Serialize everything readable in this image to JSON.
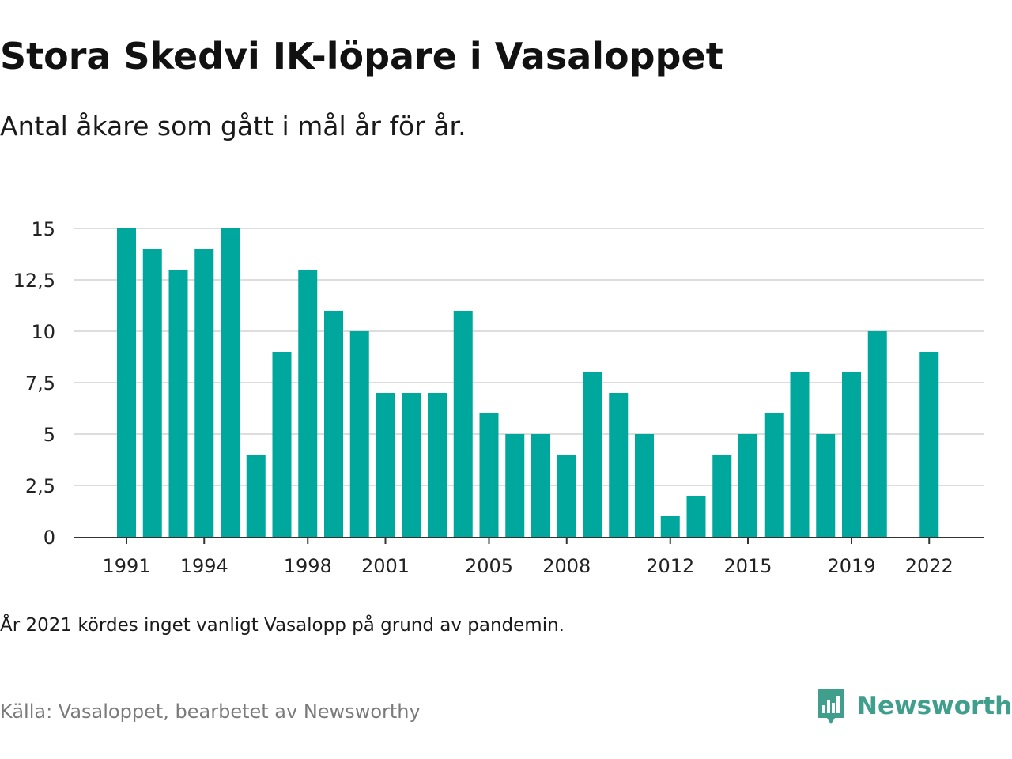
{
  "header": {
    "title": "Stora Skedvi IK-löpare i Vasaloppet",
    "subtitle": "Antal åkare som gått i mål år för år."
  },
  "footer": {
    "note": "År 2021 kördes inget vanligt Vasalopp på grund av pandemin.",
    "source": "Källa: Vasaloppet, bearbetet av Newsworthy",
    "brand_name": "Newsworthy",
    "brand_icon": "newsworthy-logo-icon"
  },
  "colors": {
    "bar": "#00a79d",
    "grid": "#dddddd",
    "axis": "#333333",
    "brand": "#3f9e8c"
  },
  "chart_data": {
    "type": "bar",
    "title": "Stora Skedvi IK-löpare i Vasaloppet",
    "subtitle": "Antal åkare som gått i mål år för år.",
    "xlabel": "",
    "ylabel": "",
    "ylim": [
      0,
      15
    ],
    "grid": true,
    "legend": "none",
    "yticks": [
      0,
      2.5,
      5,
      7.5,
      10,
      12.5,
      15
    ],
    "ytick_labels": [
      "0",
      "2,5",
      "5",
      "7,5",
      "10",
      "12,5",
      "15"
    ],
    "xtick_labels": [
      "1991",
      "1994",
      "1998",
      "2001",
      "2005",
      "2008",
      "2012",
      "2015",
      "2019",
      "2022"
    ],
    "categories": [
      1991,
      1992,
      1993,
      1994,
      1995,
      1996,
      1997,
      1998,
      1999,
      2000,
      2001,
      2002,
      2003,
      2004,
      2005,
      2006,
      2007,
      2008,
      2009,
      2010,
      2011,
      2012,
      2013,
      2014,
      2015,
      2016,
      2017,
      2018,
      2019,
      2020,
      2021,
      2022
    ],
    "values": [
      15,
      14,
      13,
      14,
      15,
      4,
      9,
      13,
      11,
      10,
      7,
      7,
      7,
      11,
      6,
      5,
      5,
      4,
      8,
      7,
      5,
      1,
      2,
      4,
      5,
      6,
      8,
      5,
      8,
      10,
      null,
      9
    ]
  }
}
